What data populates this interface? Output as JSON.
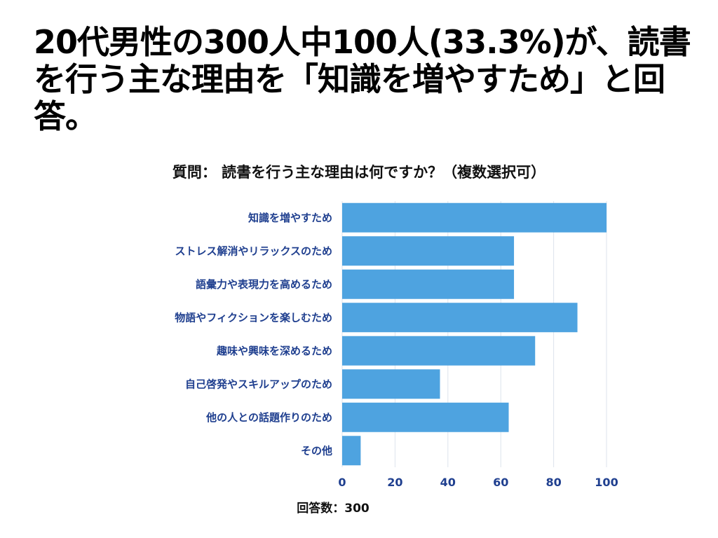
{
  "headline": {
    "text": "20代男性の300人中100人(33.3%)が、読書を行う主な理由を「知識を増やすため」と回答。"
  },
  "question": {
    "text": "質問： 読書を行う主な理由は何ですか？（複数選択可）"
  },
  "footer": {
    "text": "回答数：300"
  },
  "chart_data": {
    "type": "bar",
    "orientation": "horizontal",
    "title": "質問： 読書を行う主な理由は何ですか？（複数選択可）",
    "categories": [
      "知識を増やすため",
      "ストレス解消やリラックスのため",
      "語彙力や表現力を高めるため",
      "物語やフィクションを楽しむため",
      "趣味や興味を深めるため",
      "自己啓発やスキルアップのため",
      "他の人との話題作りのため",
      "その他"
    ],
    "values": [
      100,
      65,
      65,
      89,
      73,
      37,
      63,
      7
    ],
    "xlim": [
      0,
      100
    ],
    "xticks": [
      0,
      20,
      40,
      60,
      80,
      100
    ],
    "xlabel": "",
    "ylabel": "",
    "grid": true,
    "bar_color": "#4ea3e0",
    "label_color": "#1f3f8f"
  }
}
